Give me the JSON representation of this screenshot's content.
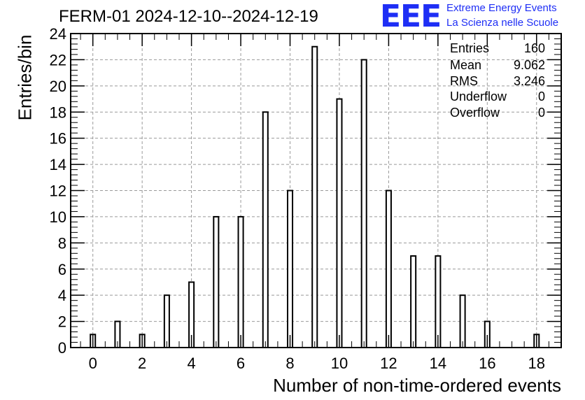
{
  "title": "FERM-01 2024-12-10--2024-12-19",
  "logo": {
    "mark": "EEE",
    "line1": "Extreme Energy Events",
    "line2": "La Scienza nelle Scuole",
    "color": "#1e2ef5"
  },
  "stats": [
    {
      "label": "Entries",
      "value": "160"
    },
    {
      "label": "Mean",
      "value": "9.062"
    },
    {
      "label": "RMS",
      "value": "3.246"
    },
    {
      "label": "Underflow",
      "value": "0"
    },
    {
      "label": "Overflow",
      "value": "0"
    }
  ],
  "chart_data": {
    "type": "bar",
    "title": "FERM-01 2024-12-10--2024-12-19",
    "xlabel": "Number of non-time-ordered events",
    "ylabel": "Entries/bin",
    "x": [
      0,
      1,
      2,
      3,
      4,
      5,
      6,
      7,
      8,
      9,
      10,
      11,
      12,
      13,
      14,
      15,
      16,
      17,
      18
    ],
    "values": [
      1,
      2,
      1,
      4,
      5,
      10,
      10,
      18,
      12,
      23,
      19,
      22,
      12,
      7,
      7,
      4,
      2,
      0,
      1
    ],
    "xlim": [
      -0.9,
      19
    ],
    "ylim": [
      0,
      24
    ],
    "xticks": [
      "0",
      "2",
      "4",
      "6",
      "8",
      "10",
      "12",
      "14",
      "16",
      "18"
    ],
    "yticks": [
      "0",
      "2",
      "4",
      "6",
      "8",
      "10",
      "12",
      "14",
      "16",
      "18",
      "20",
      "22",
      "24"
    ],
    "grid": true,
    "stats_box": "top-right"
  }
}
